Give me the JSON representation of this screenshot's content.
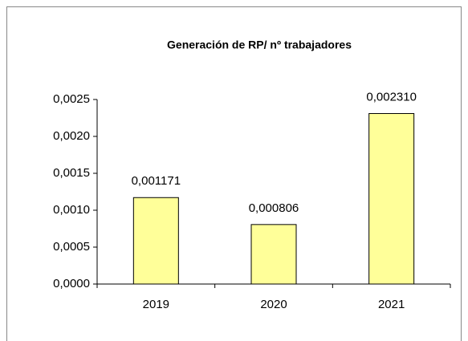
{
  "chart_data": {
    "type": "bar",
    "title": "Generación de RP/ nº trabajadores",
    "categories": [
      "2019",
      "2020",
      "2021"
    ],
    "values": [
      0.001171,
      0.000806,
      0.00231
    ],
    "value_labels": [
      "0,001171",
      "0,000806",
      "0,002310"
    ],
    "color": "#ffff99",
    "ylim": [
      0,
      0.0025
    ],
    "yticks": [
      {
        "value": 0,
        "label": "0,0000"
      },
      {
        "value": 0.0005,
        "label": "0,0005"
      },
      {
        "value": 0.001,
        "label": "0,0010"
      },
      {
        "value": 0.0015,
        "label": "0,0015"
      },
      {
        "value": 0.002,
        "label": "0,0020"
      },
      {
        "value": 0.0025,
        "label": "0,0025"
      }
    ],
    "grid": false
  }
}
